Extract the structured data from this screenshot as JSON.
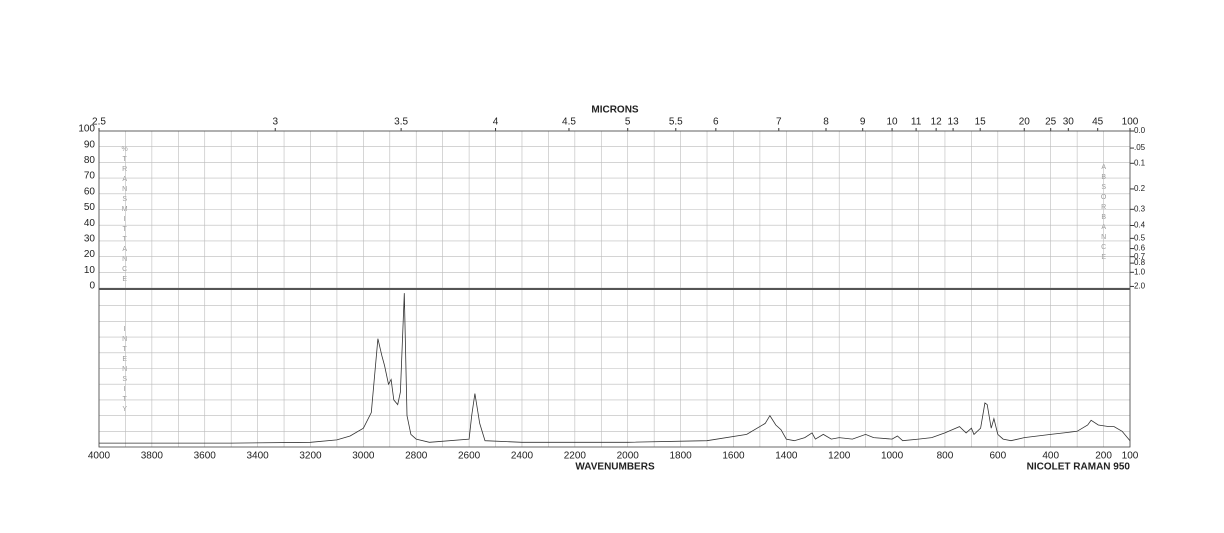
{
  "chart_data": {
    "type": "line",
    "x_label": "WAVENUMBERS",
    "x2_label": "MICRONS",
    "y_label": "%TRANSMITTANCE",
    "y2_label": "ABSORBANCE",
    "intensity_label": "INTENSITY",
    "instrument": "NICOLET RAMAN 950",
    "xlim": [
      4000,
      100
    ],
    "xticks": [
      4000,
      3800,
      3600,
      3400,
      3200,
      3000,
      2800,
      2600,
      2400,
      2200,
      2000,
      1800,
      1600,
      1400,
      1200,
      1000,
      800,
      600,
      400,
      200,
      100
    ],
    "x2ticks": [
      2.5,
      3,
      3.5,
      4,
      4.5,
      5,
      5.5,
      6,
      7,
      8,
      9,
      10,
      11,
      12,
      13,
      15,
      20,
      25,
      30,
      45,
      100
    ],
    "ylim": [
      0,
      100
    ],
    "yticks": [
      0,
      10,
      20,
      30,
      40,
      50,
      60,
      70,
      80,
      90,
      100
    ],
    "y2ticks": [
      {
        "value": 0,
        "label": "0.0"
      },
      {
        "value": 0.05,
        "label": ".05"
      },
      0.1,
      0.2,
      0.3,
      0.4,
      0.5,
      0.6,
      0.7,
      0.8,
      {
        "value": 1,
        "label": "1.0"
      },
      {
        "value": 2,
        "label": "2.0"
      }
    ],
    "intensity_lim": [
      0,
      100
    ],
    "grid": true,
    "color": "#333333",
    "x": [
      4000,
      3500,
      3200,
      3100,
      3050,
      3000,
      2970,
      2945,
      2930,
      2920,
      2905,
      2895,
      2885,
      2870,
      2860,
      2845,
      2835,
      2820,
      2800,
      2750,
      2600,
      2590,
      2578,
      2560,
      2540,
      2400,
      2000,
      1700,
      1550,
      1480,
      1462,
      1440,
      1420,
      1400,
      1370,
      1330,
      1303,
      1290,
      1260,
      1230,
      1200,
      1150,
      1100,
      1070,
      1000,
      980,
      960,
      900,
      850,
      800,
      745,
      720,
      700,
      690,
      665,
      649,
      640,
      625,
      615,
      600,
      580,
      550,
      500,
      450,
      400,
      350,
      300,
      260,
      247,
      220,
      180,
      160,
      130,
      100
    ],
    "values": [
      2.5,
      2.5,
      3,
      4.5,
      7,
      12,
      22,
      69,
      58,
      52,
      40,
      43,
      30,
      27,
      35,
      98,
      20,
      8,
      5,
      3,
      5,
      20,
      34,
      15,
      4,
      3,
      3,
      4,
      8,
      15,
      20,
      14,
      11,
      5,
      4,
      6,
      9,
      5,
      8,
      5,
      6,
      5,
      8,
      6,
      5,
      7,
      4,
      5,
      6,
      9,
      13,
      9,
      12,
      8,
      12,
      28,
      27,
      12,
      18,
      8,
      5,
      4,
      6,
      7,
      8,
      9,
      10,
      14,
      17,
      14,
      13,
      13,
      10,
      4
    ]
  }
}
